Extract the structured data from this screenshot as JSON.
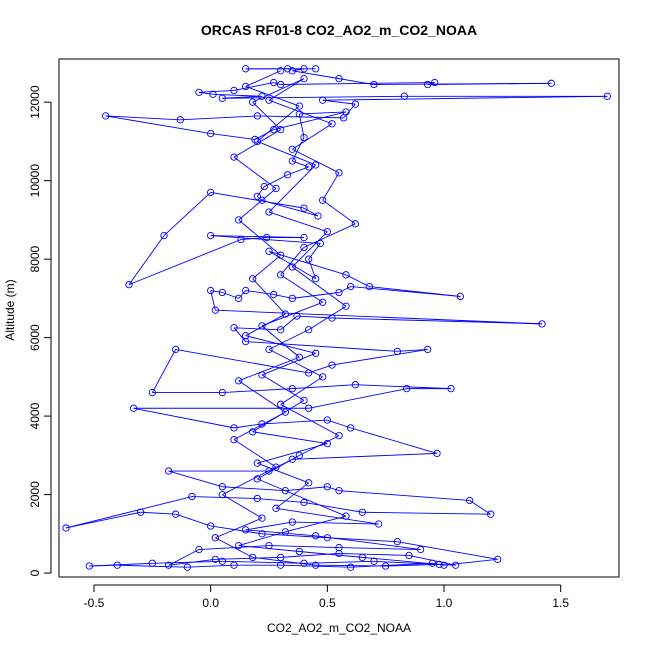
{
  "chart_data": {
    "type": "line",
    "title": "ORCAS RF01-8 CO2_AO2_m_CO2_NOAA",
    "xlabel": "CO2_AO2_m_CO2_NOAA",
    "ylabel": "Altitude (m)",
    "xlim": [
      -0.65,
      1.75
    ],
    "ylim": [
      -100,
      13100
    ],
    "xticks": [
      -0.5,
      0.0,
      0.5,
      1.0,
      1.5
    ],
    "xtick_labels": [
      "-0.5",
      "0.0",
      "0.5",
      "1.0",
      "1.5"
    ],
    "yticks": [
      0,
      2000,
      4000,
      6000,
      8000,
      10000,
      12000
    ],
    "ytick_labels": [
      "0",
      "2000",
      "4000",
      "6000",
      "8000",
      "10000",
      "12000"
    ],
    "grid": false,
    "legend": "none",
    "colors": {
      "series": "#0000ff",
      "axis": "#000000",
      "background": "#ffffff"
    },
    "series": [
      {
        "marker": "open-circle",
        "points": [
          [
            0.45,
            12850
          ],
          [
            0.15,
            12850
          ],
          [
            0.33,
            12850
          ],
          [
            0.4,
            12850
          ],
          [
            0.35,
            12800
          ],
          [
            0.55,
            12600
          ],
          [
            0.7,
            12450
          ],
          [
            1.46,
            12480
          ],
          [
            0.93,
            12450
          ],
          [
            0.96,
            12500
          ],
          [
            0.3,
            12450
          ],
          [
            0.27,
            12500
          ],
          [
            0.1,
            12300
          ],
          [
            -0.05,
            12250
          ],
          [
            0.01,
            12200
          ],
          [
            0.22,
            12150
          ],
          [
            0.05,
            12100
          ],
          [
            0.83,
            12150
          ],
          [
            1.7,
            12150
          ],
          [
            0.48,
            12050
          ],
          [
            0.62,
            11950
          ],
          [
            0.57,
            11600
          ],
          [
            0.2,
            11650
          ],
          [
            -0.13,
            11550
          ],
          [
            -0.45,
            11650
          ],
          [
            0.0,
            11200
          ],
          [
            0.19,
            11050
          ],
          [
            0.27,
            11300
          ],
          [
            0.58,
            11750
          ],
          [
            0.38,
            11700
          ],
          [
            0.4,
            11100
          ],
          [
            0.35,
            10500
          ],
          [
            0.42,
            10350
          ],
          [
            0.33,
            10150
          ],
          [
            0.23,
            9850
          ],
          [
            0.2,
            9600
          ],
          [
            0.22,
            9500
          ],
          [
            0.46,
            9100
          ],
          [
            0.4,
            9300
          ],
          [
            0.0,
            9700
          ],
          [
            -0.2,
            8600
          ],
          [
            -0.35,
            7350
          ],
          [
            0.13,
            8500
          ],
          [
            0.24,
            8550
          ],
          [
            0.4,
            8550
          ],
          [
            0.0,
            8600
          ],
          [
            0.47,
            8400
          ],
          [
            0.42,
            8000
          ],
          [
            0.45,
            7500
          ],
          [
            0.25,
            8200
          ],
          [
            0.58,
            7600
          ],
          [
            0.68,
            7300
          ],
          [
            1.07,
            7050
          ],
          [
            0.6,
            7300
          ],
          [
            0.55,
            7150
          ],
          [
            0.35,
            7000
          ],
          [
            0.27,
            7100
          ],
          [
            0.15,
            7200
          ],
          [
            0.12,
            7000
          ],
          [
            0.05,
            7150
          ],
          [
            0.0,
            7200
          ],
          [
            0.02,
            6700
          ],
          [
            1.42,
            6350
          ],
          [
            0.52,
            6500
          ],
          [
            0.37,
            6550
          ],
          [
            0.3,
            6200
          ],
          [
            0.1,
            6250
          ],
          [
            0.15,
            5900
          ],
          [
            0.8,
            5650
          ],
          [
            0.93,
            5700
          ],
          [
            0.52,
            5300
          ],
          [
            0.42,
            5100
          ],
          [
            -0.15,
            5700
          ],
          [
            -0.25,
            4600
          ],
          [
            0.05,
            4600
          ],
          [
            0.35,
            4700
          ],
          [
            0.62,
            4800
          ],
          [
            1.03,
            4700
          ],
          [
            0.84,
            4700
          ],
          [
            0.42,
            4200
          ],
          [
            -0.33,
            4200
          ],
          [
            0.1,
            3700
          ],
          [
            0.22,
            3800
          ],
          [
            0.5,
            3900
          ],
          [
            0.6,
            3700
          ],
          [
            0.97,
            3050
          ],
          [
            0.35,
            2900
          ],
          [
            0.25,
            2600
          ],
          [
            -0.18,
            2600
          ],
          [
            0.05,
            2200
          ],
          [
            0.32,
            2100
          ],
          [
            0.5,
            2200
          ],
          [
            0.55,
            2100
          ],
          [
            1.11,
            1850
          ],
          [
            1.2,
            1500
          ],
          [
            0.65,
            1550
          ],
          [
            0.4,
            1800
          ],
          [
            0.2,
            1900
          ],
          [
            -0.08,
            1950
          ],
          [
            -0.62,
            1150
          ],
          [
            -0.3,
            1550
          ],
          [
            -0.15,
            1500
          ],
          [
            0.0,
            1200
          ],
          [
            0.22,
            1000
          ],
          [
            0.5,
            900
          ],
          [
            0.8,
            800
          ],
          [
            1.23,
            350
          ],
          [
            1.0,
            200
          ],
          [
            0.95,
            250
          ],
          [
            0.6,
            150
          ],
          [
            0.3,
            200
          ],
          [
            0.1,
            200
          ],
          [
            -0.1,
            150
          ],
          [
            -0.4,
            200
          ],
          [
            -0.52,
            180
          ],
          [
            -0.25,
            250
          ],
          [
            0.05,
            300
          ],
          [
            0.4,
            250
          ],
          [
            0.7,
            300
          ],
          [
            1.05,
            200
          ],
          [
            0.85,
            450
          ],
          [
            0.55,
            500
          ],
          [
            0.3,
            400
          ],
          [
            0.02,
            350
          ],
          [
            -0.18,
            200
          ],
          [
            -0.05,
            600
          ],
          [
            0.25,
            700
          ],
          [
            0.55,
            650
          ],
          [
            0.9,
            600
          ],
          [
            0.45,
            950
          ],
          [
            0.15,
            1100
          ],
          [
            0.35,
            1300
          ],
          [
            0.72,
            1250
          ],
          [
            0.28,
            1650
          ],
          [
            0.42,
            2300
          ],
          [
            0.2,
            2800
          ],
          [
            0.5,
            3300
          ],
          [
            0.18,
            3600
          ],
          [
            0.4,
            4400
          ],
          [
            0.22,
            5050
          ],
          [
            0.45,
            5600
          ],
          [
            0.15,
            6050
          ],
          [
            0.32,
            6600
          ],
          [
            0.18,
            7500
          ],
          [
            0.3,
            8100
          ],
          [
            0.12,
            9000
          ],
          [
            0.28,
            9800
          ],
          [
            0.1,
            10600
          ],
          [
            0.3,
            11300
          ],
          [
            0.18,
            12000
          ],
          [
            0.4,
            12600
          ],
          [
            0.25,
            12050
          ],
          [
            0.52,
            11450
          ],
          [
            0.35,
            10800
          ],
          [
            0.55,
            10200
          ],
          [
            0.48,
            9500
          ],
          [
            0.62,
            8900
          ],
          [
            0.4,
            8300
          ],
          [
            0.3,
            7600
          ],
          [
            0.48,
            6900
          ],
          [
            0.22,
            6300
          ],
          [
            0.38,
            5500
          ],
          [
            0.12,
            4900
          ],
          [
            0.32,
            4100
          ],
          [
            0.1,
            3400
          ],
          [
            0.28,
            2700
          ],
          [
            0.05,
            2000
          ],
          [
            0.22,
            1400
          ],
          [
            0.02,
            900
          ],
          [
            0.18,
            400
          ],
          [
            0.45,
            200
          ],
          [
            0.75,
            180
          ],
          [
            0.98,
            220
          ],
          [
            0.65,
            400
          ],
          [
            0.38,
            550
          ],
          [
            0.12,
            700
          ],
          [
            0.32,
            1050
          ],
          [
            0.58,
            1450
          ],
          [
            0.2,
            2400
          ],
          [
            0.38,
            3000
          ],
          [
            0.55,
            3500
          ],
          [
            0.3,
            4300
          ],
          [
            0.48,
            5000
          ],
          [
            0.25,
            5700
          ],
          [
            0.42,
            6200
          ],
          [
            0.58,
            6800
          ],
          [
            0.35,
            7800
          ],
          [
            0.5,
            8700
          ],
          [
            0.25,
            9200
          ],
          [
            0.45,
            10400
          ],
          [
            0.2,
            11000
          ],
          [
            0.38,
            11900
          ],
          [
            0.15,
            12400
          ],
          [
            0.3,
            12800
          ]
        ]
      }
    ]
  }
}
